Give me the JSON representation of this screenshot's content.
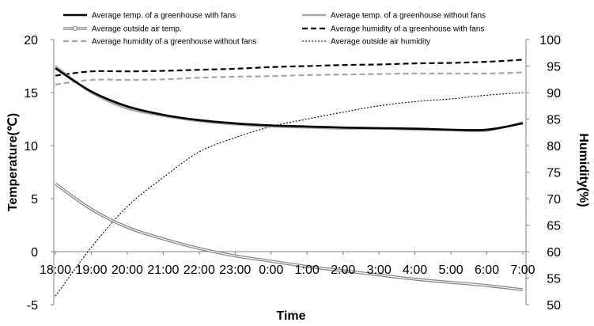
{
  "chart_data": {
    "type": "line",
    "xlabel": "Time",
    "ylabel_left": "Temperature(℃)",
    "ylabel_right": "Humidity(%)",
    "x": [
      "18:00",
      "19:00",
      "20:00",
      "21:00",
      "22:00",
      "23:00",
      "0:00",
      "1:00",
      "2:00",
      "3:00",
      "4:00",
      "5:00",
      "6:00",
      "7:00"
    ],
    "x_tick_labels": [
      "18:00",
      "19:00",
      "20:00",
      "21:00",
      "22:00",
      "23:00",
      "0:00",
      "1:00",
      "2:00",
      "3:00",
      "4:00",
      "5:00",
      "6:00",
      "7:00"
    ],
    "ylim_left": [
      -5,
      20
    ],
    "yticks_left": [
      "-5",
      "0",
      "5",
      "10",
      "15",
      "20"
    ],
    "ylim_right": [
      50,
      100
    ],
    "yticks_right": [
      "50",
      "55",
      "60",
      "65",
      "70",
      "75",
      "80",
      "85",
      "90",
      "95",
      "100"
    ],
    "grid": false,
    "legend": "top, two columns",
    "series": [
      {
        "name": "Average temp. of a greenhouse with fans",
        "axis": "left",
        "color": "#000000",
        "style": "solid-thick",
        "values": [
          17.3,
          15.1,
          13.7,
          12.9,
          12.4,
          12.1,
          11.9,
          11.8,
          11.7,
          11.65,
          11.6,
          11.5,
          11.5,
          12.1
        ]
      },
      {
        "name": "Average temp. of a greenhouse without fans",
        "axis": "left",
        "color": "#a6a6a6",
        "style": "solid-thick",
        "values": [
          17.5,
          15.0,
          13.5,
          12.8,
          12.3,
          12.0,
          11.8,
          11.7,
          11.6,
          11.6,
          11.5,
          11.45,
          11.4,
          12.2
        ]
      },
      {
        "name": "Average outside air temp.",
        "axis": "left",
        "color": "#7f7f7f",
        "style": "double",
        "values": [
          6.4,
          4.0,
          2.3,
          1.2,
          0.3,
          -0.4,
          -0.9,
          -1.4,
          -1.8,
          -2.2,
          -2.6,
          -2.9,
          -3.2,
          -3.6
        ]
      },
      {
        "name": "Average humidity of a greenhouse with fans",
        "axis": "right",
        "color": "#000000",
        "style": "dashed",
        "values": [
          93.2,
          94.0,
          94.0,
          94.1,
          94.3,
          94.5,
          94.8,
          95.0,
          95.2,
          95.3,
          95.5,
          95.6,
          95.8,
          96.2
        ]
      },
      {
        "name": "Average humidity of a greenhouse without fans",
        "axis": "right",
        "color": "#a6a6a6",
        "style": "dashed",
        "values": [
          91.5,
          92.4,
          92.4,
          92.5,
          92.8,
          93.0,
          93.1,
          93.3,
          93.4,
          93.5,
          93.6,
          93.6,
          93.6,
          93.8
        ]
      },
      {
        "name": "Average outside air humidity",
        "axis": "right",
        "color": "#000000",
        "style": "dotted",
        "values": [
          51.6,
          60.8,
          68.5,
          74.0,
          78.8,
          81.5,
          83.6,
          85.0,
          86.3,
          87.5,
          88.3,
          88.8,
          89.5,
          90.0
        ]
      }
    ]
  }
}
